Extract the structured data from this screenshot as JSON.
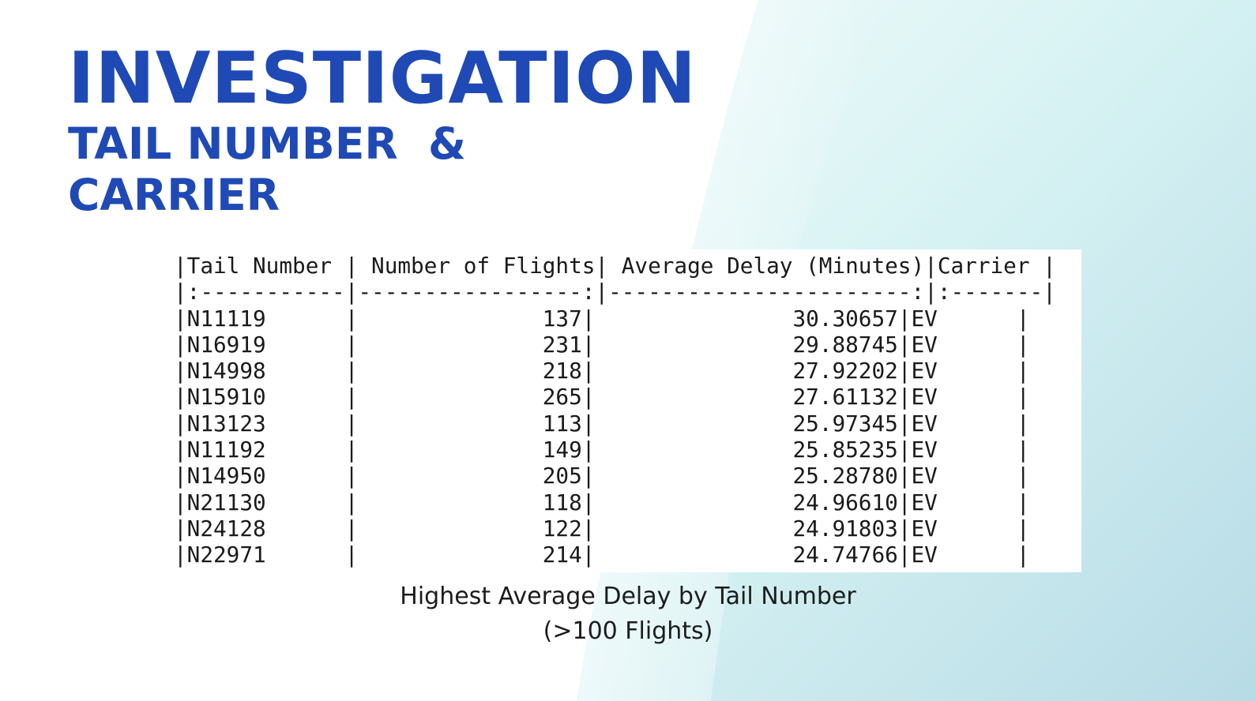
{
  "heading": {
    "title": "INVESTIGATION",
    "subtitle_line1": "TAIL NUMBER  &",
    "subtitle_line2": "CARRIER"
  },
  "table": {
    "header_line": "|Tail Number | Number of Flights| Average Delay (Minutes)|Carrier |",
    "separator_line": "|:-----------|-----------------:|-----------------------:|:-------|",
    "columns": [
      "Tail Number",
      "Number of Flights",
      "Average Delay (Minutes)",
      "Carrier"
    ],
    "rows": [
      {
        "tail": "N11119",
        "flights": "137",
        "delay": "30.30657",
        "carrier": "EV"
      },
      {
        "tail": "N16919",
        "flights": "231",
        "delay": "29.88745",
        "carrier": "EV"
      },
      {
        "tail": "N14998",
        "flights": "218",
        "delay": "27.92202",
        "carrier": "EV"
      },
      {
        "tail": "N15910",
        "flights": "265",
        "delay": "27.61132",
        "carrier": "EV"
      },
      {
        "tail": "N13123",
        "flights": "113",
        "delay": "25.97345",
        "carrier": "EV"
      },
      {
        "tail": "N11192",
        "flights": "149",
        "delay": "25.85235",
        "carrier": "EV"
      },
      {
        "tail": "N14950",
        "flights": "205",
        "delay": "25.28780",
        "carrier": "EV"
      },
      {
        "tail": "N21130",
        "flights": "118",
        "delay": "24.96610",
        "carrier": "EV"
      },
      {
        "tail": "N24128",
        "flights": "122",
        "delay": "24.91803",
        "carrier": "EV"
      },
      {
        "tail": "N22971",
        "flights": "214",
        "delay": "24.74766",
        "carrier": "EV"
      }
    ]
  },
  "caption": {
    "line1": "Highest Average Delay by Tail Number",
    "line2": "(>100 Flights)"
  },
  "colors": {
    "heading": "#1f49b5",
    "gradient_light": "#e6f8f9",
    "gradient_mid": "#c9eef0",
    "gradient_dark": "#b8dde6"
  }
}
